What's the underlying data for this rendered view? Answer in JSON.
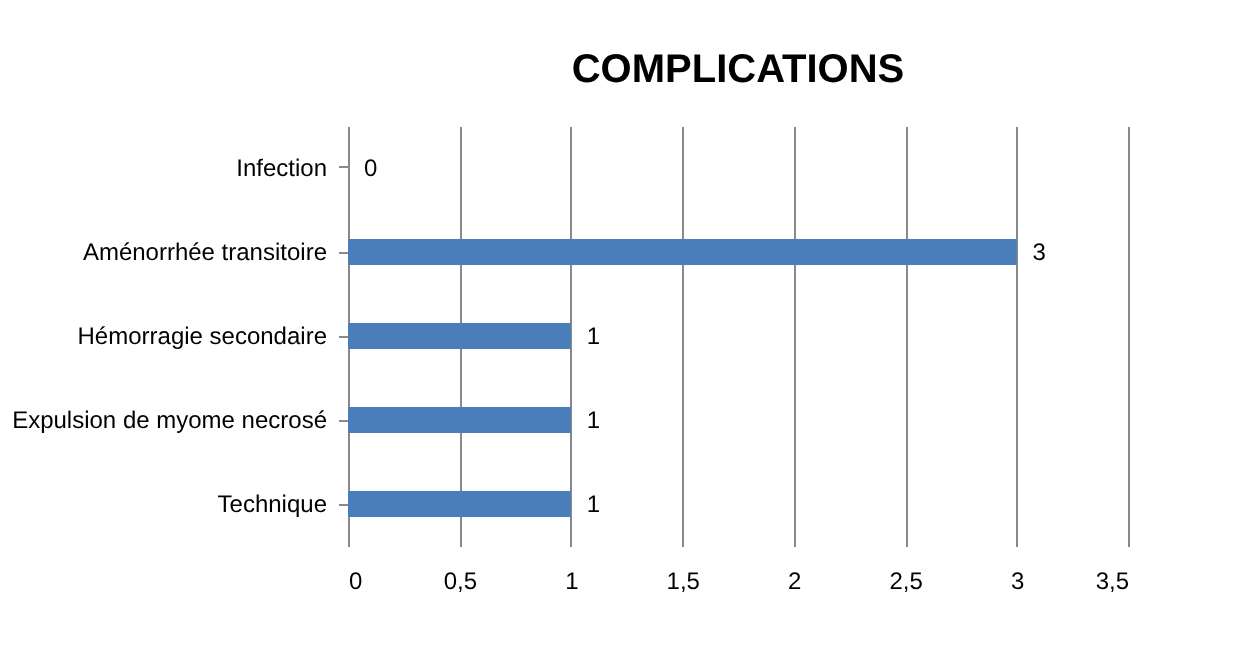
{
  "chart_data": {
    "type": "bar",
    "orientation": "horizontal",
    "title": "COMPLICATIONS",
    "categories": [
      "Infection",
      "Aménorrhée transitoire",
      "Hémorragie secondaire",
      "Expulsion de myome necrosé",
      "Technique"
    ],
    "values": [
      0,
      3,
      1,
      1,
      1
    ],
    "color": "#4a7ebb",
    "xlim": [
      0,
      3.5
    ],
    "xticks": [
      0,
      {
        "value": 0.5,
        "label": "0,5"
      },
      1,
      {
        "value": 1.5,
        "label": "1,5"
      },
      2,
      {
        "value": 2.5,
        "label": "2,5"
      },
      3,
      {
        "value": 3.5,
        "label": "3,5"
      }
    ],
    "grid": "x",
    "data_labels": true
  }
}
